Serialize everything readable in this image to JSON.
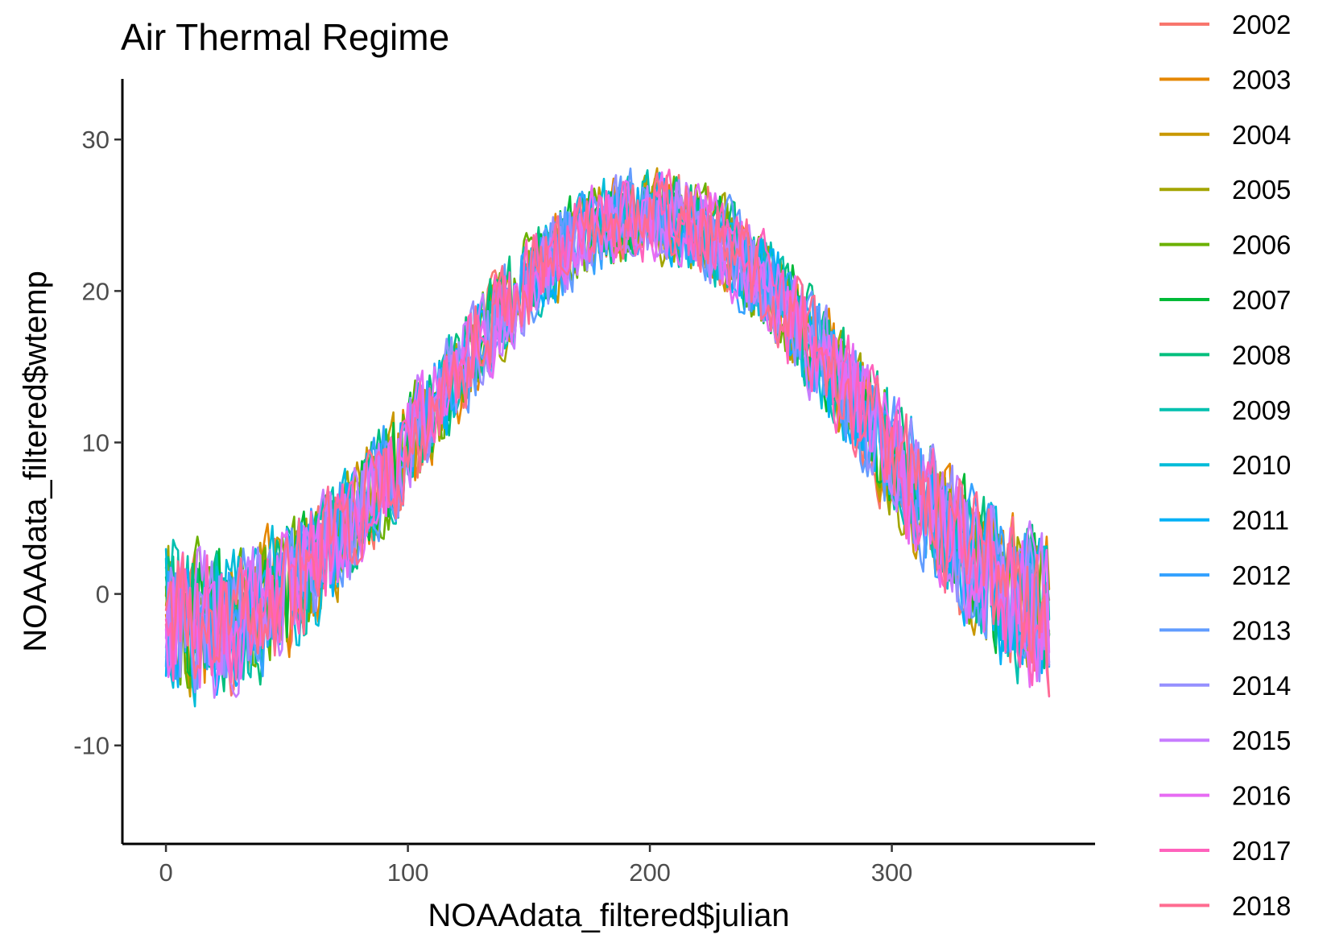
{
  "chart_data": {
    "type": "line",
    "title": "Air Thermal Regime",
    "xlabel": "NOAAdata_filtered$julian",
    "ylabel": "NOAAdata_filtered$wtemp",
    "xlim": [
      -18,
      384
    ],
    "ylim": [
      -16.5,
      34
    ],
    "x_ticks": [
      0,
      100,
      200,
      300
    ],
    "y_ticks": [
      -10,
      0,
      10,
      20,
      30
    ],
    "grid": false,
    "legend_position": "right",
    "series": [
      {
        "name": "2002",
        "color": "#F8766D"
      },
      {
        "name": "2003",
        "color": "#E58700"
      },
      {
        "name": "2004",
        "color": "#C99800"
      },
      {
        "name": "2005",
        "color": "#A3A500"
      },
      {
        "name": "2006",
        "color": "#6BB100"
      },
      {
        "name": "2007",
        "color": "#00BA38"
      },
      {
        "name": "2008",
        "color": "#00BF7D"
      },
      {
        "name": "2009",
        "color": "#00C0AF"
      },
      {
        "name": "2010",
        "color": "#00BCD8"
      },
      {
        "name": "2011",
        "color": "#00B0F6"
      },
      {
        "name": "2012",
        "color": "#35A2FF"
      },
      {
        "name": "2013",
        "color": "#619CFF"
      },
      {
        "name": "2014",
        "color": "#9590FF"
      },
      {
        "name": "2015",
        "color": "#C77CFF"
      },
      {
        "name": "2016",
        "color": "#E76BF3"
      },
      {
        "name": "2017",
        "color": "#FF62BC"
      },
      {
        "name": "2018",
        "color": "#FF6C91"
      }
    ]
  }
}
